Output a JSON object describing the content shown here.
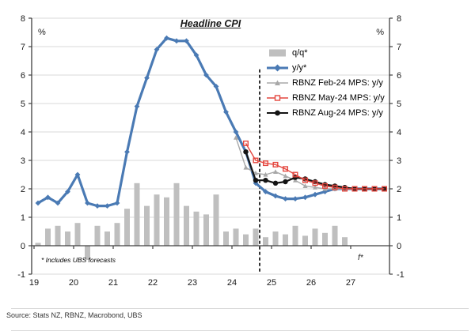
{
  "title": "Headline CPI",
  "y_axis": {
    "unit_label": "%",
    "ticks": [
      8,
      7,
      6,
      5,
      4,
      3,
      2,
      1,
      0,
      -1
    ],
    "min": -1,
    "max": 8
  },
  "x_axis": {
    "ticks": [
      "19",
      "20",
      "21",
      "22",
      "23",
      "24",
      "25",
      "26",
      "27"
    ]
  },
  "legend": {
    "items": [
      {
        "label": "q/q*",
        "color": "#bfbfbf",
        "swatch": "bar"
      },
      {
        "label": "y/y*",
        "color": "#4a7ab4",
        "swatch": "line-diamond"
      },
      {
        "label": "RBNZ Feb-24 MPS: y/y",
        "color": "#a8a8a8",
        "swatch": "line-triangle"
      },
      {
        "label": "RBNZ May-24 MPS: y/y",
        "color": "#e4473f",
        "swatch": "line-open-square"
      },
      {
        "label": "RBNZ Aug-24 MPS: y/y",
        "color": "#141414",
        "swatch": "line-circle"
      }
    ]
  },
  "annotations": {
    "footnote": "* Includes UBS forecasts",
    "forecast_label": "f*"
  },
  "source": "Source: Stats NZ, RBNZ, Macrobond, UBS",
  "chart_data": {
    "type": "combo_bar_line",
    "title": "Headline CPI",
    "ylabel": "%",
    "ylim": [
      -1,
      8
    ],
    "xlim": [
      19,
      28
    ],
    "grid": "horizontal",
    "legend_position": "top-right-inside",
    "forecast_divider_x": 24.6,
    "series": [
      {
        "id": "qq",
        "name": "q/q*",
        "type": "bar",
        "color": "#bfbfbf",
        "x": [
          19.0,
          19.25,
          19.5,
          19.75,
          20.0,
          20.25,
          20.5,
          20.75,
          21.0,
          21.25,
          21.5,
          21.75,
          22.0,
          22.25,
          22.5,
          22.75,
          23.0,
          23.25,
          23.5,
          23.75,
          24.0,
          24.25,
          24.5,
          24.75,
          25.0,
          25.25,
          25.5,
          25.75,
          26.0,
          26.25,
          26.5,
          26.75
        ],
        "values": [
          0.1,
          0.6,
          0.7,
          0.5,
          0.8,
          -0.5,
          0.7,
          0.5,
          0.8,
          1.3,
          2.2,
          1.4,
          1.8,
          1.7,
          2.2,
          1.4,
          1.2,
          1.1,
          1.8,
          0.5,
          0.6,
          0.4,
          0.6,
          0.3,
          0.5,
          0.4,
          0.7,
          0.35,
          0.6,
          0.45,
          0.7,
          0.3
        ]
      },
      {
        "id": "yy",
        "name": "y/y*",
        "type": "line",
        "marker": "diamond",
        "color": "#4a7ab4",
        "width": 3.2,
        "x": [
          19.0,
          19.25,
          19.5,
          19.75,
          20.0,
          20.25,
          20.5,
          20.75,
          21.0,
          21.25,
          21.5,
          21.75,
          22.0,
          22.25,
          22.5,
          22.75,
          23.0,
          23.25,
          23.5,
          23.75,
          24.0,
          24.25,
          24.5,
          24.75,
          25.0,
          25.25,
          25.5,
          25.75,
          26.0,
          26.25,
          26.5,
          26.75,
          27.0,
          27.25,
          27.5,
          27.75
        ],
        "values": [
          1.5,
          1.7,
          1.5,
          1.9,
          2.5,
          1.5,
          1.4,
          1.4,
          1.5,
          3.3,
          4.9,
          5.9,
          6.9,
          7.3,
          7.2,
          7.2,
          6.7,
          6.0,
          5.6,
          4.7,
          4.0,
          3.3,
          2.2,
          1.9,
          1.75,
          1.65,
          1.65,
          1.7,
          1.8,
          1.9,
          2.0,
          2.0,
          2.0,
          2.0,
          2.0,
          2.0
        ]
      },
      {
        "id": "rbnz-feb24",
        "name": "RBNZ Feb-24 MPS: y/y",
        "type": "line",
        "marker": "triangle",
        "color": "#a8a8a8",
        "width": 1.4,
        "x": [
          24.0,
          24.25,
          24.5,
          24.75,
          25.0,
          25.25,
          25.5,
          25.75,
          26.0,
          26.25,
          26.5,
          26.75,
          27.0,
          27.25,
          27.5,
          27.75
        ],
        "values": [
          3.8,
          2.75,
          2.55,
          2.5,
          2.6,
          2.45,
          2.3,
          2.1,
          2.05,
          2.0,
          2.0,
          2.0,
          2.0,
          2.0,
          2.0,
          2.0
        ]
      },
      {
        "id": "rbnz-may24",
        "name": "RBNZ May-24 MPS: y/y",
        "type": "line",
        "marker": "open-square",
        "color": "#e4473f",
        "width": 1.4,
        "x": [
          24.25,
          24.5,
          24.75,
          25.0,
          25.25,
          25.5,
          25.75,
          26.0,
          26.25,
          26.5,
          26.75,
          27.0,
          27.25,
          27.5,
          27.75
        ],
        "values": [
          3.6,
          3.0,
          2.9,
          2.85,
          2.7,
          2.5,
          2.3,
          2.2,
          2.1,
          2.05,
          2.0,
          2.0,
          2.0,
          2.0,
          2.0
        ]
      },
      {
        "id": "rbnz-aug24",
        "name": "RBNZ Aug-24 MPS: y/y",
        "type": "line",
        "marker": "circle",
        "color": "#141414",
        "width": 2.2,
        "x": [
          24.25,
          24.5,
          24.75,
          25.0,
          25.25,
          25.5,
          25.75,
          26.0,
          26.25,
          26.5,
          26.75,
          27.0,
          27.25,
          27.5,
          27.75
        ],
        "values": [
          3.3,
          2.3,
          2.3,
          2.2,
          2.25,
          2.4,
          2.35,
          2.25,
          2.15,
          2.1,
          2.05,
          2.0,
          2.0,
          2.0,
          2.0
        ]
      }
    ]
  }
}
